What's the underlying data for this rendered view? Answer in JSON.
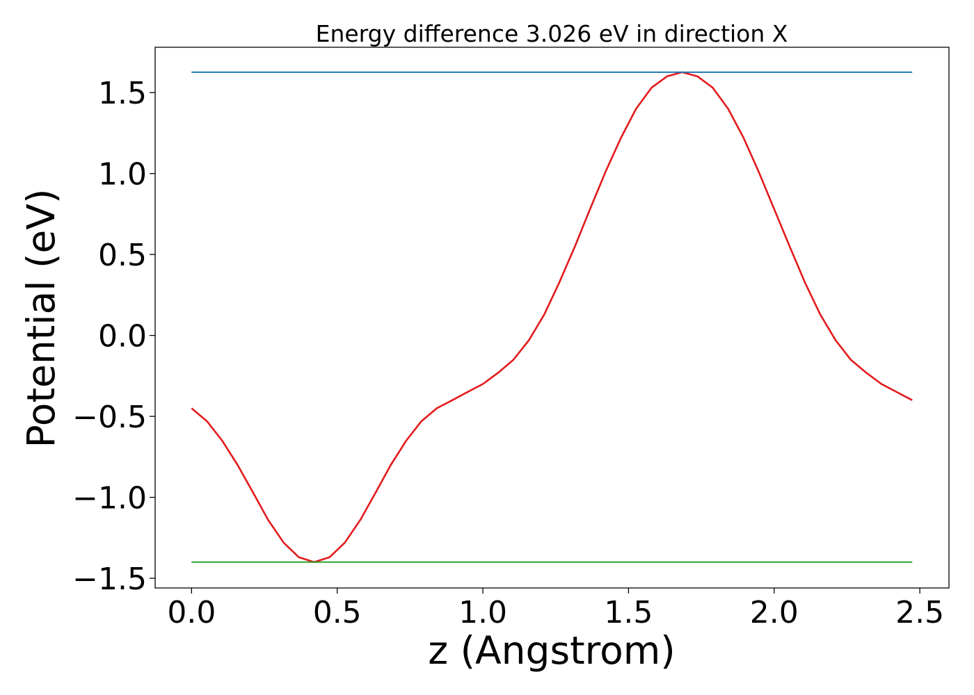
{
  "chart_data": {
    "type": "line",
    "title": "Energy difference 3.026 eV in direction X",
    "xlabel": "z (Angstrom)",
    "ylabel": "Potential (eV)",
    "xlim": [
      -0.125,
      2.6
    ],
    "ylim": [
      -1.56,
      1.78
    ],
    "xticks": [
      0.0,
      0.5,
      1.0,
      1.5,
      2.0,
      2.5
    ],
    "xtick_labels": [
      "0.0",
      "0.5",
      "1.0",
      "1.5",
      "2.0",
      "2.5"
    ],
    "yticks": [
      -1.5,
      -1.0,
      -0.5,
      0.0,
      0.5,
      1.0,
      1.5
    ],
    "ytick_labels": [
      "−1.5",
      "−1.0",
      "−0.5",
      "0.0",
      "0.5",
      "1.0",
      "1.5"
    ],
    "grid": false,
    "series": [
      {
        "color": "#e31a1c",
        "x": [
          0.0,
          0.053,
          0.105,
          0.158,
          0.211,
          0.263,
          0.316,
          0.368,
          0.421,
          0.474,
          0.526,
          0.579,
          0.632,
          0.684,
          0.737,
          0.789,
          0.842,
          0.895,
          0.947,
          1.0,
          1.053,
          1.105,
          1.158,
          1.211,
          1.263,
          1.316,
          1.368,
          1.421,
          1.474,
          1.526,
          1.579,
          1.632,
          1.684,
          1.737,
          1.789,
          1.842,
          1.895,
          1.947,
          2.0,
          2.053,
          2.105,
          2.158,
          2.211,
          2.263,
          2.316,
          2.368,
          2.421,
          2.474
        ],
        "y": [
          -0.45,
          -0.53,
          -0.65,
          -0.8,
          -0.97,
          -1.14,
          -1.28,
          -1.37,
          -1.4,
          -1.37,
          -1.28,
          -1.14,
          -0.97,
          -0.8,
          -0.65,
          -0.53,
          -0.45,
          -0.4,
          -0.35,
          -0.3,
          -0.23,
          -0.15,
          -0.03,
          0.13,
          0.33,
          0.55,
          0.78,
          1.01,
          1.22,
          1.4,
          1.53,
          1.6,
          1.626,
          1.6,
          1.53,
          1.4,
          1.22,
          1.01,
          0.78,
          0.55,
          0.33,
          0.13,
          -0.03,
          -0.15,
          -0.23,
          -0.3,
          -0.35,
          -0.4
        ]
      },
      {
        "color": "#1f77b4",
        "x": [
          0.0,
          2.474
        ],
        "y": [
          1.626,
          1.626
        ]
      },
      {
        "color": "#2ca02c",
        "x": [
          0.0,
          2.474
        ],
        "y": [
          -1.4,
          -1.4
        ]
      }
    ]
  }
}
